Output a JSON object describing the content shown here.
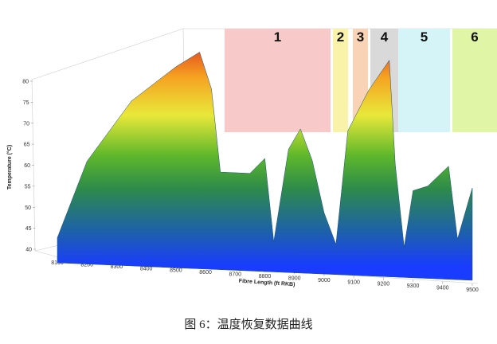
{
  "chart_data": {
    "type": "surface",
    "xlabel": "Fibre Length (ft RKB)",
    "ylabel": "Temperature (°C)",
    "xlim": [
      8100,
      9500
    ],
    "xticks": [
      8100,
      8200,
      8300,
      8400,
      8500,
      8600,
      8700,
      8800,
      8900,
      9000,
      9100,
      9200,
      9300,
      9400,
      9500
    ],
    "ylim": [
      40,
      80
    ],
    "yticks": [
      40,
      45,
      50,
      55,
      60,
      65,
      70,
      75,
      80
    ],
    "x": [
      8100,
      8200,
      8350,
      8500,
      8580,
      8620,
      8650,
      8750,
      8800,
      8830,
      8880,
      8920,
      8960,
      9000,
      9040,
      9080,
      9150,
      9220,
      9240,
      9270,
      9300,
      9350,
      9420,
      9450,
      9500
    ],
    "values": [
      43,
      58,
      70,
      77,
      80,
      73,
      57,
      57,
      60,
      44,
      62,
      66,
      60,
      50,
      44,
      66,
      74,
      80,
      60,
      44,
      55,
      56,
      60,
      46,
      56
    ],
    "zones": [
      {
        "label": "1",
        "color": "#f7c9c9"
      },
      {
        "label": "2",
        "color": "#f8f3a8"
      },
      {
        "label": "3",
        "color": "#f9d3b6"
      },
      {
        "label": "4",
        "color": "#d9d9d9"
      },
      {
        "label": "5",
        "color": "#d4f4f7"
      },
      {
        "label": "6",
        "color": "#e0f5a6"
      }
    ],
    "caption": "图 6：温度恢复数据曲线"
  }
}
